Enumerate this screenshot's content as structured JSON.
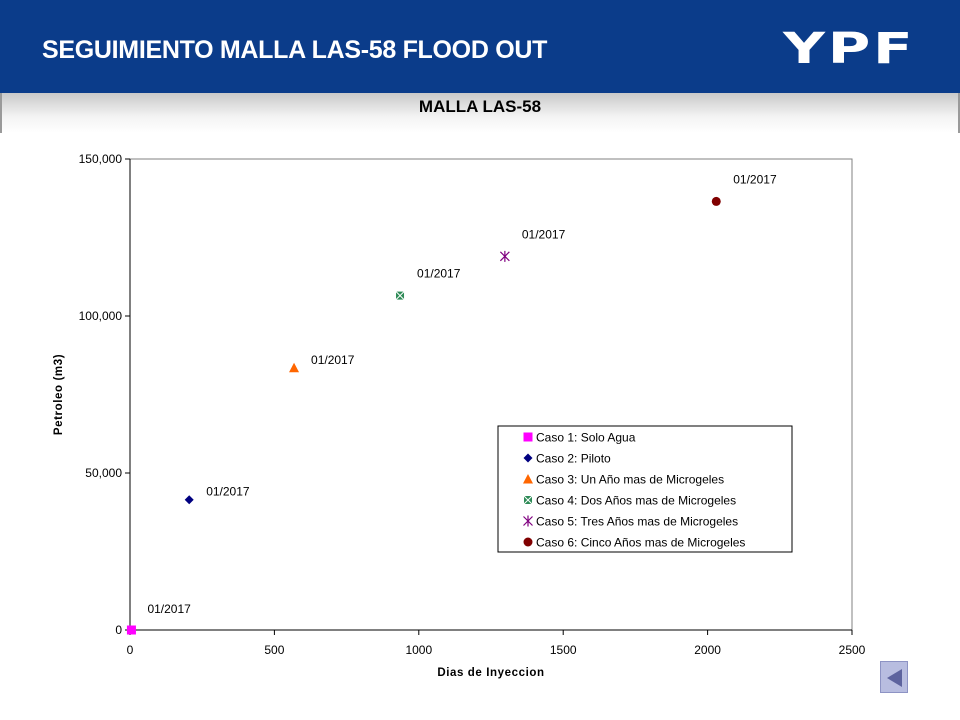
{
  "header": {
    "title": "SEGUIMIENTO MALLA LAS-58  FLOOD OUT",
    "logo_text": "YPF",
    "background": "#0b3c8a"
  },
  "chart_data": {
    "type": "scatter",
    "title": "MALLA LAS-58",
    "xlabel": "Dias de Inyeccion",
    "ylabel": "Petroleo (m3)",
    "xlim": [
      0,
      2500
    ],
    "ylim": [
      0,
      150000
    ],
    "x_ticks": [
      0,
      500,
      1000,
      1500,
      2000,
      2500
    ],
    "y_ticks": [
      0,
      50000,
      100000,
      150000
    ],
    "x_tick_labels": [
      "0",
      "500",
      "1000",
      "1500",
      "2000",
      "2500"
    ],
    "y_tick_labels": [
      "0",
      "50,000",
      "100,000",
      "150,000"
    ],
    "grid": false,
    "legend_position": "lower-right",
    "series": [
      {
        "name": "Caso 1: Solo Agua",
        "marker": "square",
        "color": "#ff00ff",
        "x": [
          5
        ],
        "y": [
          0
        ],
        "point_label": "01/2017"
      },
      {
        "name": "Caso 2: Piloto",
        "marker": "diamond",
        "color": "#000080",
        "x": [
          205
        ],
        "y": [
          41500
        ],
        "point_label": "01/2017"
      },
      {
        "name": "Caso 3: Un Año mas de Microgeles",
        "marker": "triangle",
        "color": "#ff6600",
        "x": [
          568
        ],
        "y": [
          83500
        ],
        "point_label": "01/2017"
      },
      {
        "name": "Caso 4: Dos Años mas de Microgeles",
        "marker": "x-square",
        "color": "#2e8b57",
        "x": [
          935
        ],
        "y": [
          106500
        ],
        "point_label": "01/2017"
      },
      {
        "name": "Caso 5: Tres Años mas de Microgeles",
        "marker": "star",
        "color": "#800080",
        "x": [
          1298
        ],
        "y": [
          119000
        ],
        "point_label": "01/2017"
      },
      {
        "name": "Caso 6: Cinco Años mas de Microgeles",
        "marker": "circle",
        "color": "#800000",
        "x": [
          2030
        ],
        "y": [
          136500
        ],
        "point_label": "01/2017"
      }
    ]
  },
  "nav": {
    "back_icon": "back-arrow-icon"
  }
}
